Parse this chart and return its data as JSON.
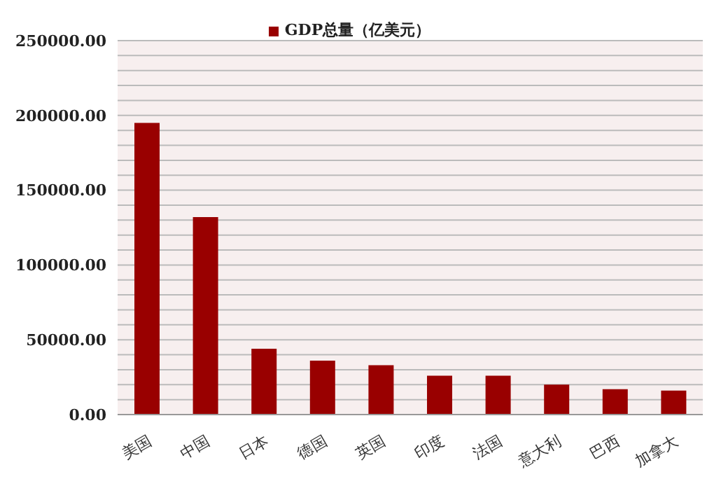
{
  "chart_data": {
    "type": "bar",
    "categories": [
      "美国",
      "中国",
      "日本",
      "德国",
      "英国",
      "印度",
      "法国",
      "意大利",
      "巴西",
      "加拿大"
    ],
    "series": [
      {
        "name": "GDP总量（亿美元）",
        "color": "#990000",
        "values": [
          195000,
          132000,
          44000,
          36000,
          33000,
          26000,
          26000,
          20000,
          17000,
          16000
        ]
      }
    ],
    "ylim": [
      0,
      250000
    ],
    "yticks": [
      {
        "value": 0,
        "label": "0.00"
      },
      {
        "value": 10000,
        "label": null
      },
      {
        "value": 20000,
        "label": null
      },
      {
        "value": 30000,
        "label": null
      },
      {
        "value": 40000,
        "label": null
      },
      {
        "value": 50000,
        "label": "50000.00"
      },
      {
        "value": 60000,
        "label": null
      },
      {
        "value": 70000,
        "label": null
      },
      {
        "value": 80000,
        "label": null
      },
      {
        "value": 90000,
        "label": null
      },
      {
        "value": 100000,
        "label": "100000.00"
      },
      {
        "value": 110000,
        "label": null
      },
      {
        "value": 120000,
        "label": null
      },
      {
        "value": 130000,
        "label": null
      },
      {
        "value": 140000,
        "label": null
      },
      {
        "value": 150000,
        "label": "150000.00"
      },
      {
        "value": 160000,
        "label": null
      },
      {
        "value": 170000,
        "label": null
      },
      {
        "value": 180000,
        "label": null
      },
      {
        "value": 190000,
        "label": null
      },
      {
        "value": 200000,
        "label": "200000.00"
      },
      {
        "value": 210000,
        "label": null
      },
      {
        "value": 220000,
        "label": null
      },
      {
        "value": 230000,
        "label": null
      },
      {
        "value": 240000,
        "label": null
      },
      {
        "value": 250000,
        "label": "250000.00"
      }
    ],
    "grid": "y",
    "legend": "top"
  }
}
